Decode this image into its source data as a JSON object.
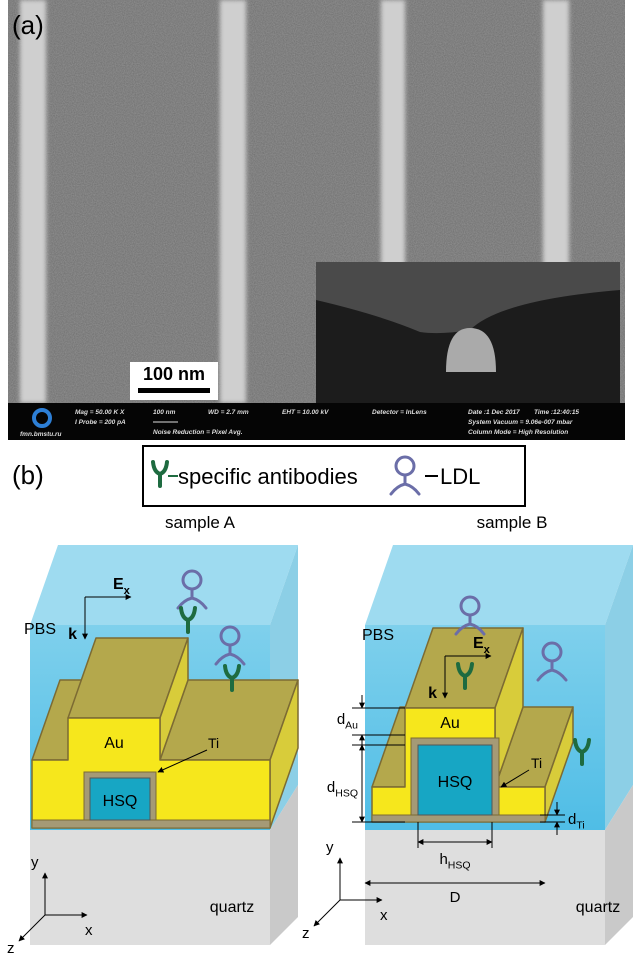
{
  "panel_a": {
    "label": "(a)",
    "scale_bar": "100 nm",
    "info": {
      "mag": "Mag =  50.00 K X",
      "probe": "I Probe =   200 pA",
      "scale": "100 nm",
      "wd": "WD =  2.7 mm",
      "noise": "Noise Reduction = Pixel Avg.",
      "eht": "EHT = 10.00 kV",
      "detector": "Detector = InLens",
      "date": "Date :1 Dec 2017",
      "time": "Time :12:40:15",
      "vacuum": "System Vacuum = 9.06e-007 mbar",
      "column": "Column Mode = High Resolution",
      "site": "fmn.bmstu.ru"
    }
  },
  "panel_b": {
    "label": "(b)",
    "legend": {
      "antibodies": "specific antibodies",
      "ldl": "LDL"
    },
    "sample_a": {
      "title": "sample A",
      "medium": "PBS",
      "field": {
        "main": "E",
        "sub": "x"
      },
      "wave": "k",
      "gold": "Au",
      "ti": "Ti",
      "hsq": "HSQ",
      "substrate": "quartz",
      "axes": {
        "y": "y",
        "z": "z",
        "x": "x"
      }
    },
    "sample_b": {
      "title": "sample B",
      "medium": "PBS",
      "field": {
        "main": "E",
        "sub": "x"
      },
      "wave": "k",
      "gold": "Au",
      "ti": "Ti",
      "hsq": "HSQ",
      "substrate": "quartz",
      "axes": {
        "y": "y",
        "z": "z",
        "x": "x"
      },
      "d_au": {
        "main": "d",
        "sub": "Au"
      },
      "d_hsq": {
        "main": "d",
        "sub": "HSQ"
      },
      "d_ti": {
        "main": "d",
        "sub": "Ti"
      },
      "h_hsq": {
        "main": "h",
        "sub": "HSQ"
      },
      "period": "D"
    }
  }
}
